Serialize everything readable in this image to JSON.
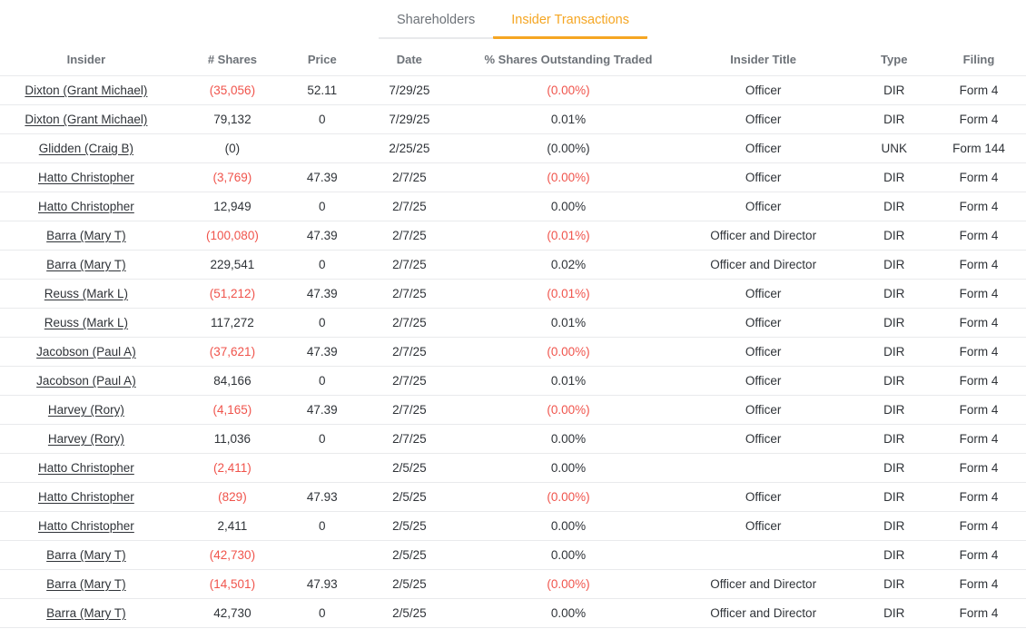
{
  "colors": {
    "accent": "#f5a623",
    "negative": "#f0544c",
    "divider": "#e9eaec",
    "muted_text": "#6d7278"
  },
  "tabs": [
    {
      "label": "Shareholders",
      "active": false
    },
    {
      "label": "Insider Transactions",
      "active": true
    }
  ],
  "table": {
    "columns": [
      "Insider",
      "# Shares",
      "Price",
      "Date",
      "% Shares Outstanding Traded",
      "Insider Title",
      "Type",
      "Filing"
    ],
    "rows": [
      {
        "insider": "Dixton (Grant Michael)",
        "shares": "(35,056)",
        "shares_neg": true,
        "price": "52.11",
        "date": "7/29/25",
        "pct": "(0.00%)",
        "pct_neg": true,
        "title": "Officer",
        "type": "DIR",
        "filing": "Form 4"
      },
      {
        "insider": "Dixton (Grant Michael)",
        "shares": "79,132",
        "shares_neg": false,
        "price": "0",
        "date": "7/29/25",
        "pct": "0.01%",
        "pct_neg": false,
        "title": "Officer",
        "type": "DIR",
        "filing": "Form 4"
      },
      {
        "insider": "Glidden (Craig B)",
        "shares": "(0)",
        "shares_neg": false,
        "price": "",
        "date": "2/25/25",
        "pct": "(0.00%)",
        "pct_neg": false,
        "title": "Officer",
        "type": "UNK",
        "filing": "Form 144"
      },
      {
        "insider": "Hatto Christopher",
        "shares": "(3,769)",
        "shares_neg": true,
        "price": "47.39",
        "date": "2/7/25",
        "pct": "(0.00%)",
        "pct_neg": true,
        "title": "Officer",
        "type": "DIR",
        "filing": "Form 4"
      },
      {
        "insider": "Hatto Christopher",
        "shares": "12,949",
        "shares_neg": false,
        "price": "0",
        "date": "2/7/25",
        "pct": "0.00%",
        "pct_neg": false,
        "title": "Officer",
        "type": "DIR",
        "filing": "Form 4"
      },
      {
        "insider": "Barra (Mary T)",
        "shares": "(100,080)",
        "shares_neg": true,
        "price": "47.39",
        "date": "2/7/25",
        "pct": "(0.01%)",
        "pct_neg": true,
        "title": "Officer and Director",
        "type": "DIR",
        "filing": "Form 4"
      },
      {
        "insider": "Barra (Mary T)",
        "shares": "229,541",
        "shares_neg": false,
        "price": "0",
        "date": "2/7/25",
        "pct": "0.02%",
        "pct_neg": false,
        "title": "Officer and Director",
        "type": "DIR",
        "filing": "Form 4"
      },
      {
        "insider": "Reuss (Mark L)",
        "shares": "(51,212)",
        "shares_neg": true,
        "price": "47.39",
        "date": "2/7/25",
        "pct": "(0.01%)",
        "pct_neg": true,
        "title": "Officer",
        "type": "DIR",
        "filing": "Form 4"
      },
      {
        "insider": "Reuss (Mark L)",
        "shares": "117,272",
        "shares_neg": false,
        "price": "0",
        "date": "2/7/25",
        "pct": "0.01%",
        "pct_neg": false,
        "title": "Officer",
        "type": "DIR",
        "filing": "Form 4"
      },
      {
        "insider": "Jacobson (Paul A)",
        "shares": "(37,621)",
        "shares_neg": true,
        "price": "47.39",
        "date": "2/7/25",
        "pct": "(0.00%)",
        "pct_neg": true,
        "title": "Officer",
        "type": "DIR",
        "filing": "Form 4"
      },
      {
        "insider": "Jacobson (Paul A)",
        "shares": "84,166",
        "shares_neg": false,
        "price": "0",
        "date": "2/7/25",
        "pct": "0.01%",
        "pct_neg": false,
        "title": "Officer",
        "type": "DIR",
        "filing": "Form 4"
      },
      {
        "insider": "Harvey (Rory)",
        "shares": "(4,165)",
        "shares_neg": true,
        "price": "47.39",
        "date": "2/7/25",
        "pct": "(0.00%)",
        "pct_neg": true,
        "title": "Officer",
        "type": "DIR",
        "filing": "Form 4"
      },
      {
        "insider": "Harvey (Rory)",
        "shares": "11,036",
        "shares_neg": false,
        "price": "0",
        "date": "2/7/25",
        "pct": "0.00%",
        "pct_neg": false,
        "title": "Officer",
        "type": "DIR",
        "filing": "Form 4"
      },
      {
        "insider": "Hatto Christopher",
        "shares": "(2,411)",
        "shares_neg": true,
        "price": "",
        "date": "2/5/25",
        "pct": "0.00%",
        "pct_neg": false,
        "title": "",
        "type": "DIR",
        "filing": "Form 4"
      },
      {
        "insider": "Hatto Christopher",
        "shares": "(829)",
        "shares_neg": true,
        "price": "47.93",
        "date": "2/5/25",
        "pct": "(0.00%)",
        "pct_neg": true,
        "title": "Officer",
        "type": "DIR",
        "filing": "Form 4"
      },
      {
        "insider": "Hatto Christopher",
        "shares": "2,411",
        "shares_neg": false,
        "price": "0",
        "date": "2/5/25",
        "pct": "0.00%",
        "pct_neg": false,
        "title": "Officer",
        "type": "DIR",
        "filing": "Form 4"
      },
      {
        "insider": "Barra (Mary T)",
        "shares": "(42,730)",
        "shares_neg": true,
        "price": "",
        "date": "2/5/25",
        "pct": "0.00%",
        "pct_neg": false,
        "title": "",
        "type": "DIR",
        "filing": "Form 4"
      },
      {
        "insider": "Barra (Mary T)",
        "shares": "(14,501)",
        "shares_neg": true,
        "price": "47.93",
        "date": "2/5/25",
        "pct": "(0.00%)",
        "pct_neg": true,
        "title": "Officer and Director",
        "type": "DIR",
        "filing": "Form 4"
      },
      {
        "insider": "Barra (Mary T)",
        "shares": "42,730",
        "shares_neg": false,
        "price": "0",
        "date": "2/5/25",
        "pct": "0.00%",
        "pct_neg": false,
        "title": "Officer and Director",
        "type": "DIR",
        "filing": "Form 4"
      }
    ]
  }
}
